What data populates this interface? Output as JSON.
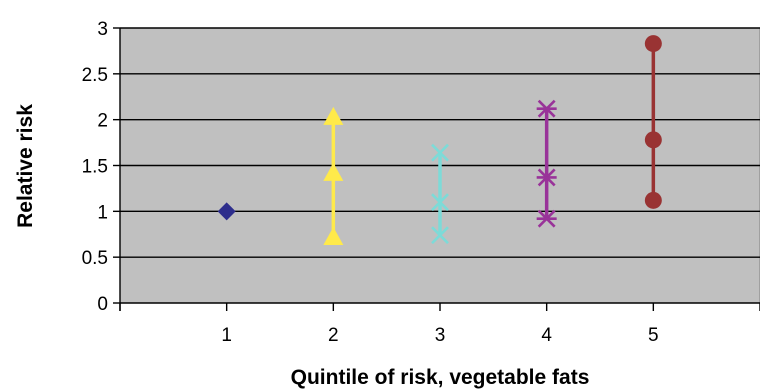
{
  "chart_data": {
    "type": "scatter",
    "xlabel": "Quintile of risk, vegetable fats",
    "ylabel": "Relative risk",
    "xlim": [
      0,
      6
    ],
    "ylim": [
      0,
      3
    ],
    "x_ticks": [
      1,
      2,
      3,
      4,
      5
    ],
    "x_tick_labels": [
      "1",
      "2",
      "3",
      "4",
      "5"
    ],
    "y_ticks": [
      0,
      0.5,
      1,
      1.5,
      2,
      2.5,
      3
    ],
    "y_tick_labels": [
      "0",
      "0.5",
      "1",
      "1.5",
      "2",
      "2.5",
      "3"
    ],
    "grid": true,
    "plot_background": "#c0c0c0",
    "series": [
      {
        "x": 1,
        "low": 1.0,
        "mid": 1.0,
        "high": 1.0,
        "marker": "diamond",
        "color": "#2e2e8c"
      },
      {
        "x": 2,
        "low": 0.72,
        "mid": 1.42,
        "high": 2.03,
        "marker": "triangle",
        "color": "#ffea4a"
      },
      {
        "x": 3,
        "low": 0.74,
        "mid": 1.1,
        "high": 1.64,
        "marker": "x",
        "color": "#7ddbd8"
      },
      {
        "x": 4,
        "low": 0.92,
        "mid": 1.37,
        "high": 2.12,
        "marker": "asterisk",
        "color": "#993399"
      },
      {
        "x": 5,
        "low": 1.12,
        "mid": 1.78,
        "high": 2.83,
        "marker": "circle",
        "color": "#993333"
      }
    ]
  }
}
